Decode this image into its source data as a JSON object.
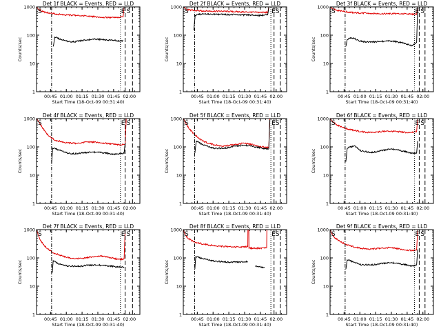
{
  "chart_data": {
    "type": "line",
    "layout": "3x3",
    "y_scale": "log",
    "ylim": [
      1,
      1000
    ],
    "yticks": [
      "1",
      "10",
      "100",
      "1000"
    ],
    "ylabel": "Counts/sec",
    "xlabel": "Start Time (18-Oct-09 00:31:40)",
    "xlim": [
      "00:31:40",
      "02:10:00"
    ],
    "xticks": [
      "00:45",
      "01:00",
      "01:15",
      "01:30",
      "01:45",
      "02:00"
    ],
    "series_colors": {
      "events": "#000000",
      "lld": "#e00000"
    },
    "marker_labels": {
      "start": "S",
      "end": "E"
    },
    "panels": [
      {
        "id": "det1",
        "title": "Det 1f BLACK = Events, RED = LLD",
        "events": [
          [
            "00:47:00",
            null
          ],
          [
            "00:47:40",
            40
          ],
          [
            "00:49:00",
            85
          ],
          [
            "00:55:00",
            70
          ],
          [
            "01:00:00",
            62
          ],
          [
            "01:05:00",
            58
          ],
          [
            "01:10:00",
            60
          ],
          [
            "01:20:00",
            68
          ],
          [
            "01:28:00",
            72
          ],
          [
            "01:35:00",
            70
          ],
          [
            "01:42:00",
            66
          ],
          [
            "01:48:00",
            64
          ],
          [
            "01:52:00",
            62
          ],
          [
            "01:54:00",
            64
          ]
        ],
        "lld": [
          [
            "00:31:40",
            1000
          ],
          [
            "00:33:00",
            860
          ],
          [
            "00:36:00",
            720
          ],
          [
            "00:40:00",
            640
          ],
          [
            "00:45:00",
            600
          ],
          [
            "00:50:00",
            560
          ],
          [
            "01:00:00",
            520
          ],
          [
            "01:10:00",
            500
          ],
          [
            "01:20:00",
            470
          ],
          [
            "01:30:00",
            440
          ],
          [
            "01:40:00",
            420
          ],
          [
            "01:48:00",
            420
          ],
          [
            "01:54:00",
            440
          ],
          [
            "01:55:00",
            1000
          ]
        ],
        "markers": {
          "dashdot": "00:46:00",
          "dotted": "01:51:30",
          "dashed": [
            "01:56:00",
            "02:03:00"
          ]
        }
      },
      {
        "id": "det2",
        "title": "Det 2f BLACK = Events, RED = LLD",
        "events": [
          [
            "00:41:00",
            null
          ],
          [
            "00:41:40",
            150
          ],
          [
            "00:43:00",
            500
          ],
          [
            "00:48:00",
            560
          ],
          [
            "00:55:00",
            550
          ],
          [
            "01:10:00",
            540
          ],
          [
            "01:30:00",
            520
          ],
          [
            "01:45:00",
            500
          ],
          [
            "01:52:00",
            520
          ],
          [
            "01:53:00",
            1000
          ]
        ],
        "lld": [
          [
            "00:31:40",
            1000
          ],
          [
            "00:33:30",
            900
          ],
          [
            "00:35:00",
            800
          ],
          [
            "00:40:00",
            760
          ],
          [
            "00:45:00",
            740
          ],
          [
            "00:50:00",
            720
          ],
          [
            "01:10:00",
            700
          ],
          [
            "01:30:00",
            660
          ],
          [
            "01:45:00",
            640
          ],
          [
            "01:52:00",
            640
          ],
          [
            "01:53:00",
            1000
          ]
        ],
        "markers": {
          "dashdot": "00:42:30",
          "dotted": "01:55:00",
          "dashed": [
            "01:58:00",
            "02:04:00"
          ]
        }
      },
      {
        "id": "det3",
        "title": "Det 3f BLACK = Events, RED = LLD",
        "events": [
          [
            "00:46:00",
            null
          ],
          [
            "00:46:40",
            40
          ],
          [
            "00:48:00",
            70
          ],
          [
            "00:52:00",
            80
          ],
          [
            "00:55:00",
            75
          ],
          [
            "01:00:00",
            62
          ],
          [
            "01:10:00",
            56
          ],
          [
            "01:20:00",
            60
          ],
          [
            "01:30:00",
            62
          ],
          [
            "01:40:00",
            55
          ],
          [
            "01:50:00",
            42
          ],
          [
            "01:54:00",
            55
          ],
          [
            "01:55:00",
            1000
          ]
        ],
        "lld": [
          [
            "00:31:40",
            1000
          ],
          [
            "00:34:00",
            880
          ],
          [
            "00:38:00",
            760
          ],
          [
            "00:45:00",
            680
          ],
          [
            "00:55:00",
            620
          ],
          [
            "01:10:00",
            590
          ],
          [
            "01:25:00",
            570
          ],
          [
            "01:35:00",
            580
          ],
          [
            "01:45:00",
            560
          ],
          [
            "01:54:00",
            550
          ],
          [
            "01:55:00",
            1000
          ]
        ],
        "markers": {
          "dashdot": "00:46:00",
          "dotted": "01:52:00",
          "dashed": [
            "01:56:30",
            "02:02:00"
          ]
        }
      },
      {
        "id": "det4",
        "title": "Det 4f BLACK = Events, RED = LLD",
        "events": [
          [
            "00:45:30",
            null
          ],
          [
            "00:46:00",
            25
          ],
          [
            "00:47:00",
            90
          ],
          [
            "00:52:00",
            80
          ],
          [
            "01:00:00",
            62
          ],
          [
            "01:05:00",
            57
          ],
          [
            "01:15:00",
            60
          ],
          [
            "01:25:00",
            66
          ],
          [
            "01:35:00",
            62
          ],
          [
            "01:45:00",
            55
          ],
          [
            "01:55:00",
            60
          ],
          [
            "01:56:00",
            140
          ]
        ],
        "lld": [
          [
            "00:31:40",
            1000
          ],
          [
            "00:34:00",
            760
          ],
          [
            "00:37:00",
            500
          ],
          [
            "00:40:00",
            340
          ],
          [
            "00:44:00",
            230
          ],
          [
            "00:50:00",
            170
          ],
          [
            "01:00:00",
            140
          ],
          [
            "01:10:00",
            132
          ],
          [
            "01:20:00",
            150
          ],
          [
            "01:30:00",
            145
          ],
          [
            "01:40:00",
            130
          ],
          [
            "01:50:00",
            118
          ],
          [
            "01:56:00",
            120
          ],
          [
            "01:57:00",
            1000
          ]
        ],
        "markers": {
          "dashdot": "00:46:00",
          "dotted": "01:51:30",
          "dashed": [
            "01:56:00",
            "02:03:00"
          ]
        }
      },
      {
        "id": "det5",
        "title": "Det 5f BLACK = Events, RED = LLD",
        "events": [
          [
            "00:42:00",
            null
          ],
          [
            "00:42:40",
            60
          ],
          [
            "00:44:00",
            160
          ],
          [
            "00:50:00",
            120
          ],
          [
            "01:00:00",
            90
          ],
          [
            "01:10:00",
            88
          ],
          [
            "01:20:00",
            104
          ],
          [
            "01:30:00",
            114
          ],
          [
            "01:40:00",
            100
          ],
          [
            "01:50:00",
            86
          ],
          [
            "01:53:00",
            86
          ],
          [
            "01:54:00",
            900
          ]
        ],
        "lld": [
          [
            "00:31:40",
            1000
          ],
          [
            "00:34:00",
            700
          ],
          [
            "00:37:00",
            450
          ],
          [
            "00:42:00",
            280
          ],
          [
            "00:50:00",
            160
          ],
          [
            "01:00:00",
            120
          ],
          [
            "01:10:00",
            105
          ],
          [
            "01:20:00",
            120
          ],
          [
            "01:30:00",
            135
          ],
          [
            "01:40:00",
            115
          ],
          [
            "01:50:00",
            95
          ],
          [
            "01:53:00",
            95
          ],
          [
            "01:54:00",
            1000
          ]
        ],
        "markers": {
          "dashdot": "00:42:30",
          "dotted": "01:55:00",
          "dashed": [
            "01:58:00",
            "02:04:00"
          ]
        }
      },
      {
        "id": "det6",
        "title": "Det 6f BLACK = Events, RED = LLD",
        "events": [
          [
            "00:46:00",
            null
          ],
          [
            "00:46:40",
            30
          ],
          [
            "00:48:00",
            90
          ],
          [
            "00:55:00",
            110
          ],
          [
            "01:00:00",
            75
          ],
          [
            "01:10:00",
            62
          ],
          [
            "01:20:00",
            72
          ],
          [
            "01:30:00",
            85
          ],
          [
            "01:40:00",
            72
          ],
          [
            "01:50:00",
            60
          ],
          [
            "01:54:00",
            60
          ],
          [
            "01:55:00",
            160
          ]
        ],
        "lld": [
          [
            "00:31:40",
            1000
          ],
          [
            "00:34:00",
            800
          ],
          [
            "00:38:00",
            600
          ],
          [
            "00:45:00",
            460
          ],
          [
            "00:55:00",
            380
          ],
          [
            "01:05:00",
            330
          ],
          [
            "01:15:00",
            330
          ],
          [
            "01:25:00",
            360
          ],
          [
            "01:35:00",
            350
          ],
          [
            "01:45:00",
            320
          ],
          [
            "01:54:00",
            350
          ],
          [
            "01:55:00",
            1000
          ]
        ],
        "markers": {
          "dashdot": "00:46:00",
          "dotted": "01:52:00",
          "dashed": [
            "01:56:30",
            "02:02:00"
          ]
        }
      },
      {
        "id": "det7",
        "title": "Det 7f BLACK = Events, RED = LLD",
        "events": [
          [
            "00:46:00",
            null
          ],
          [
            "00:46:40",
            30
          ],
          [
            "00:47:30",
            80
          ],
          [
            "00:52:00",
            62
          ],
          [
            "01:00:00",
            52
          ],
          [
            "01:10:00",
            50
          ],
          [
            "01:20:00",
            54
          ],
          [
            "01:30:00",
            56
          ],
          [
            "01:40:00",
            52
          ],
          [
            "01:50:00",
            48
          ],
          [
            "01:55:00",
            48
          ]
        ],
        "lld": [
          [
            "00:31:40",
            1000
          ],
          [
            "00:33:00",
            700
          ],
          [
            "00:35:00",
            450
          ],
          [
            "00:38:00",
            300
          ],
          [
            "00:42:00",
            210
          ],
          [
            "00:48:00",
            150
          ],
          [
            "00:55:00",
            120
          ],
          [
            "01:05:00",
            95
          ],
          [
            "01:15:00",
            95
          ],
          [
            "01:25:00",
            110
          ],
          [
            "01:32:00",
            118
          ],
          [
            "01:40:00",
            105
          ],
          [
            "01:50:00",
            88
          ],
          [
            "01:55:00",
            92
          ],
          [
            "01:56:00",
            1000
          ]
        ],
        "markers": {
          "dashdot": "00:46:00",
          "dotted": "01:51:30",
          "dashed": [
            "01:56:00",
            "02:03:00"
          ]
        }
      },
      {
        "id": "det8",
        "title": "Det 8f BLACK = Events, RED = LLD",
        "events": [
          [
            "00:42:00",
            null
          ],
          [
            "00:42:40",
            40
          ],
          [
            "00:43:30",
            110
          ],
          [
            "00:50:00",
            95
          ],
          [
            "01:00:00",
            78
          ],
          [
            "01:10:00",
            72
          ],
          [
            "01:20:00",
            70
          ],
          [
            "01:30:00",
            72
          ],
          [
            "01:33:00",
            74
          ],
          [
            "01:33:10",
            null
          ],
          [
            "01:40:00",
            50
          ],
          [
            "01:45:00",
            48
          ],
          [
            "01:49:00",
            46
          ],
          [
            "01:49:10",
            null
          ],
          [
            "01:52:00",
            null
          ],
          [
            "01:52:10",
            1000
          ]
        ],
        "lld": [
          [
            "00:31:40",
            1000
          ],
          [
            "00:33:00",
            700
          ],
          [
            "00:36:00",
            500
          ],
          [
            "00:40:00",
            400
          ],
          [
            "00:45:00",
            340
          ],
          [
            "00:55:00",
            290
          ],
          [
            "01:05:00",
            260
          ],
          [
            "01:15:00",
            250
          ],
          [
            "01:25:00",
            240
          ],
          [
            "01:33:00",
            250
          ],
          [
            "01:33:10",
            1000
          ],
          [
            "01:34:00",
            1000
          ],
          [
            "01:34:10",
            220
          ],
          [
            "01:45:00",
            220
          ],
          [
            "01:51:00",
            230
          ],
          [
            "01:51:10",
            1000
          ]
        ],
        "markers": {
          "dashdot": "00:42:30",
          "dotted": "01:55:00",
          "dashed": [
            "01:58:00",
            "02:04:00"
          ]
        }
      },
      {
        "id": "det9",
        "title": "Det 9f BLACK = Events, RED = LLD",
        "events": [
          [
            "00:46:00",
            null
          ],
          [
            "00:46:40",
            40
          ],
          [
            "00:48:00",
            85
          ],
          [
            "00:55:00",
            70
          ],
          [
            "01:00:00",
            58
          ],
          [
            "01:10:00",
            56
          ],
          [
            "01:20:00",
            62
          ],
          [
            "01:30:00",
            68
          ],
          [
            "01:40:00",
            60
          ],
          [
            "01:50:00",
            52
          ],
          [
            "01:54:00",
            56
          ],
          [
            "01:55:00",
            200
          ]
        ],
        "lld": [
          [
            "00:31:40",
            1000
          ],
          [
            "00:33:00",
            760
          ],
          [
            "00:36:00",
            520
          ],
          [
            "00:42:00",
            360
          ],
          [
            "00:50:00",
            270
          ],
          [
            "01:00:00",
            220
          ],
          [
            "01:10:00",
            205
          ],
          [
            "01:20:00",
            220
          ],
          [
            "01:30:00",
            230
          ],
          [
            "01:40:00",
            200
          ],
          [
            "01:50:00",
            180
          ],
          [
            "01:54:00",
            190
          ],
          [
            "01:55:00",
            1000
          ]
        ],
        "markers": {
          "dashdot": "00:46:00",
          "dotted": "01:52:00",
          "dashed": [
            "01:56:30",
            "02:02:00"
          ]
        }
      }
    ]
  }
}
